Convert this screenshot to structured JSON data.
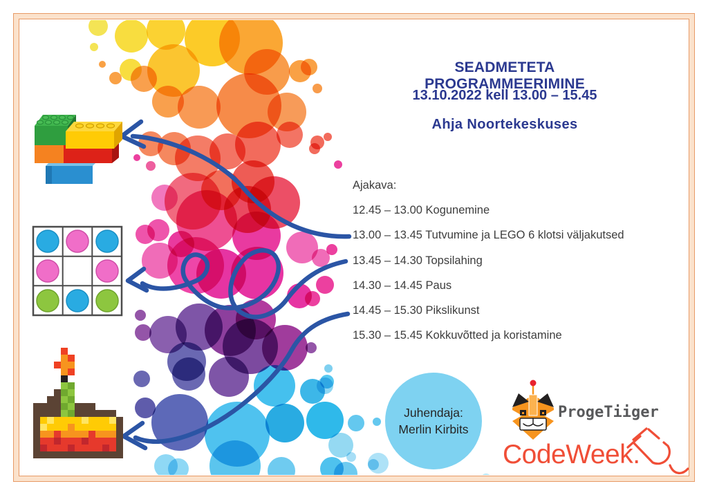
{
  "poster": {
    "title": "SEADMETETA PROGRAMMEERIMINE",
    "date_line": "13.10.2022 kell 13.00 – 15.45",
    "location_line": "Ahja Noortekeskuses",
    "schedule": {
      "heading": "Ajakava:",
      "items": [
        "12.45 – 13.00 Kogunemine",
        "13.00 – 13.45 Tutvumine ja LEGO 6 klotsi väljakutsed",
        "13.45 – 14.30 Topsilahing",
        "14.30 – 14.45 Paus",
        "14.45 – 15.30 Pikslikunst",
        "15.30 – 15.45 Kokkuvõtted ja koristamine"
      ]
    },
    "instructor": {
      "label": "Juhendaja:",
      "name": "Merlin Kirbits"
    },
    "logos": {
      "progetiiger_label": "ProgeTiiger",
      "codeweek_label": "CodeWeek."
    },
    "colors": {
      "heading_navy": "#2b3990",
      "body_text": "#3d3d3d",
      "arrow_blue": "#2b55a5",
      "border_orange": "#e89a66",
      "border_band": "#fbe2cc",
      "instructor_bubble_blue": "#7ed2f1",
      "codeweek_orange": "#f04e37",
      "progetiiger_gray": "#58595b",
      "progetiiger_orange": "#f7941e"
    },
    "icons": {
      "lego-bricks-image": "stacked lego duplo bricks",
      "grid-pattern-image": "3x3 grid with blue, pink and green dots",
      "pixel-cake-image": "pixel-art cake slice with green candle",
      "progetiiger-tiger-icon": "geometric tiger head with antenna",
      "codeweek-plug-icon": "sketched plug with curled cable",
      "curved-arrow-icon": "hand-drawn blue curved arrow"
    }
  }
}
